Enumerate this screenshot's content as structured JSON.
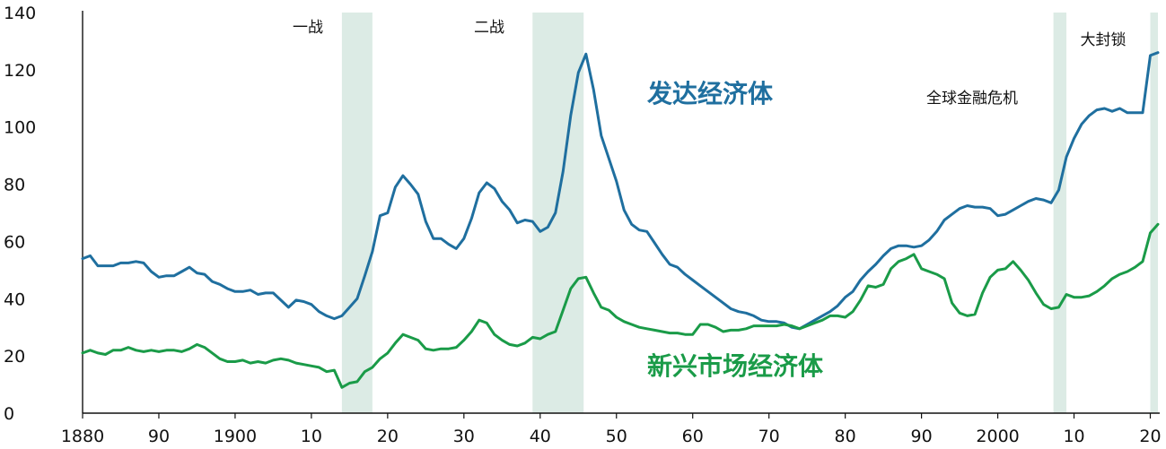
{
  "chart_data": {
    "type": "line",
    "title": "",
    "xlabel": "",
    "ylabel": "",
    "xlim": [
      1880,
      2021
    ],
    "ylim": [
      0,
      140
    ],
    "grid": false,
    "legend": "none",
    "x_ticks": [
      {
        "value": 1880,
        "label": "1880"
      },
      {
        "value": 1890,
        "label": "90"
      },
      {
        "value": 1900,
        "label": "1900"
      },
      {
        "value": 1910,
        "label": "10"
      },
      {
        "value": 1920,
        "label": "20"
      },
      {
        "value": 1930,
        "label": "30"
      },
      {
        "value": 1940,
        "label": "40"
      },
      {
        "value": 1950,
        "label": "50"
      },
      {
        "value": 1960,
        "label": "60"
      },
      {
        "value": 1970,
        "label": "70"
      },
      {
        "value": 1980,
        "label": "80"
      },
      {
        "value": 1990,
        "label": "90"
      },
      {
        "value": 2000,
        "label": "2000"
      },
      {
        "value": 2010,
        "label": "10"
      },
      {
        "value": 2020,
        "label": "20"
      }
    ],
    "y_ticks": [
      {
        "value": 0,
        "label": "0"
      },
      {
        "value": 20,
        "label": "20"
      },
      {
        "value": 40,
        "label": "40"
      },
      {
        "value": 60,
        "label": "60"
      },
      {
        "value": 80,
        "label": "80"
      },
      {
        "value": 100,
        "label": "100"
      },
      {
        "value": 120,
        "label": "120"
      },
      {
        "value": 140,
        "label": "140"
      }
    ],
    "shaded_periods": [
      {
        "label": "一战",
        "start": 1914,
        "end": 1918
      },
      {
        "label": "二战",
        "start": 1939,
        "end": 1945.7
      },
      {
        "label": "全球金融危机",
        "start": 2007.3,
        "end": 2009
      },
      {
        "label": "大封锁",
        "start": 2020,
        "end": 2021
      }
    ],
    "period_color": "#dcebe5",
    "series": [
      {
        "name": "发达经济体",
        "color": "#1f6f9f",
        "points": [
          [
            1880,
            54
          ],
          [
            1881,
            55
          ],
          [
            1882,
            51.5
          ],
          [
            1883,
            51.5
          ],
          [
            1884,
            51.5
          ],
          [
            1885,
            52.5
          ],
          [
            1886,
            52.5
          ],
          [
            1887,
            53
          ],
          [
            1888,
            52.5
          ],
          [
            1889,
            49.5
          ],
          [
            1890,
            47.5
          ],
          [
            1891,
            48
          ],
          [
            1892,
            48
          ],
          [
            1893,
            49.5
          ],
          [
            1894,
            51
          ],
          [
            1895,
            49
          ],
          [
            1896,
            48.5
          ],
          [
            1897,
            46
          ],
          [
            1898,
            45
          ],
          [
            1899,
            43.5
          ],
          [
            1900,
            42.5
          ],
          [
            1901,
            42.5
          ],
          [
            1902,
            43
          ],
          [
            1903,
            41.5
          ],
          [
            1904,
            42
          ],
          [
            1905,
            42
          ],
          [
            1906,
            39.5
          ],
          [
            1907,
            37
          ],
          [
            1908,
            39.5
          ],
          [
            1909,
            39
          ],
          [
            1910,
            38
          ],
          [
            1911,
            35.5
          ],
          [
            1912,
            34
          ],
          [
            1913,
            33
          ],
          [
            1914,
            34
          ],
          [
            1915,
            37
          ],
          [
            1916,
            40
          ],
          [
            1917,
            48
          ],
          [
            1918,
            56.5
          ],
          [
            1919,
            69
          ],
          [
            1920,
            70
          ],
          [
            1921,
            79
          ],
          [
            1922,
            83
          ],
          [
            1923,
            80
          ],
          [
            1924,
            76.5
          ],
          [
            1925,
            67
          ],
          [
            1926,
            61
          ],
          [
            1927,
            61
          ],
          [
            1928,
            59
          ],
          [
            1929,
            57.5
          ],
          [
            1930,
            61
          ],
          [
            1931,
            68
          ],
          [
            1932,
            77
          ],
          [
            1933,
            80.5
          ],
          [
            1934,
            78.5
          ],
          [
            1935,
            74
          ],
          [
            1936,
            71
          ],
          [
            1937,
            66.5
          ],
          [
            1938,
            67.5
          ],
          [
            1939,
            67
          ],
          [
            1940,
            63.5
          ],
          [
            1941,
            65
          ],
          [
            1942,
            70
          ],
          [
            1943,
            84.5
          ],
          [
            1944,
            104
          ],
          [
            1945,
            119
          ],
          [
            1946,
            125.5
          ],
          [
            1947,
            113
          ],
          [
            1948,
            97
          ],
          [
            1949,
            89
          ],
          [
            1950,
            81
          ],
          [
            1951,
            71
          ],
          [
            1952,
            66
          ],
          [
            1953,
            64
          ],
          [
            1954,
            63.5
          ],
          [
            1955,
            59.5
          ],
          [
            1956,
            55.5
          ],
          [
            1957,
            52
          ],
          [
            1958,
            51
          ],
          [
            1959,
            48.5
          ],
          [
            1960,
            46.5
          ],
          [
            1961,
            44.5
          ],
          [
            1962,
            42.5
          ],
          [
            1963,
            40.5
          ],
          [
            1964,
            38.5
          ],
          [
            1965,
            36.5
          ],
          [
            1966,
            35.5
          ],
          [
            1967,
            35
          ],
          [
            1968,
            34
          ],
          [
            1969,
            32.5
          ],
          [
            1970,
            32
          ],
          [
            1971,
            32
          ],
          [
            1972,
            31.5
          ],
          [
            1973,
            30
          ],
          [
            1974,
            29.5
          ],
          [
            1975,
            31
          ],
          [
            1976,
            32.5
          ],
          [
            1977,
            34
          ],
          [
            1978,
            35.5
          ],
          [
            1979,
            37.5
          ],
          [
            1980,
            40.5
          ],
          [
            1981,
            42.5
          ],
          [
            1982,
            46.5
          ],
          [
            1983,
            49.5
          ],
          [
            1984,
            52
          ],
          [
            1985,
            55
          ],
          [
            1986,
            57.5
          ],
          [
            1987,
            58.5
          ],
          [
            1988,
            58.5
          ],
          [
            1989,
            58
          ],
          [
            1990,
            58.5
          ],
          [
            1991,
            60.5
          ],
          [
            1992,
            63.5
          ],
          [
            1993,
            67.5
          ],
          [
            1994,
            69.5
          ],
          [
            1995,
            71.5
          ],
          [
            1996,
            72.5
          ],
          [
            1997,
            72
          ],
          [
            1998,
            72
          ],
          [
            1999,
            71.5
          ],
          [
            2000,
            69
          ],
          [
            2001,
            69.5
          ],
          [
            2002,
            71
          ],
          [
            2003,
            72.5
          ],
          [
            2004,
            74
          ],
          [
            2005,
            75
          ],
          [
            2006,
            74.5
          ],
          [
            2007,
            73.5
          ],
          [
            2008,
            78
          ],
          [
            2009,
            89.5
          ],
          [
            2010,
            96
          ],
          [
            2011,
            101
          ],
          [
            2012,
            104
          ],
          [
            2013,
            106
          ],
          [
            2014,
            106.5
          ],
          [
            2015,
            105.5
          ],
          [
            2016,
            106.5
          ],
          [
            2017,
            105
          ],
          [
            2018,
            105
          ],
          [
            2019,
            105
          ],
          [
            2020,
            125
          ],
          [
            2021,
            126
          ]
        ]
      },
      {
        "name": "新兴市场经济体",
        "color": "#1a9b48",
        "points": [
          [
            1880,
            21
          ],
          [
            1881,
            22
          ],
          [
            1882,
            21
          ],
          [
            1883,
            20.5
          ],
          [
            1884,
            22
          ],
          [
            1885,
            22
          ],
          [
            1886,
            23
          ],
          [
            1887,
            22
          ],
          [
            1888,
            21.5
          ],
          [
            1889,
            22
          ],
          [
            1890,
            21.5
          ],
          [
            1891,
            22
          ],
          [
            1892,
            22
          ],
          [
            1893,
            21.5
          ],
          [
            1894,
            22.5
          ],
          [
            1895,
            24
          ],
          [
            1896,
            23
          ],
          [
            1897,
            21
          ],
          [
            1898,
            19
          ],
          [
            1899,
            18
          ],
          [
            1900,
            18
          ],
          [
            1901,
            18.5
          ],
          [
            1902,
            17.5
          ],
          [
            1903,
            18
          ],
          [
            1904,
            17.5
          ],
          [
            1905,
            18.5
          ],
          [
            1906,
            19
          ],
          [
            1907,
            18.5
          ],
          [
            1908,
            17.5
          ],
          [
            1909,
            17
          ],
          [
            1910,
            16.5
          ],
          [
            1911,
            16
          ],
          [
            1912,
            14.5
          ],
          [
            1913,
            15
          ],
          [
            1914,
            9
          ],
          [
            1915,
            10.5
          ],
          [
            1916,
            11
          ],
          [
            1917,
            14.5
          ],
          [
            1918,
            16
          ],
          [
            1919,
            19
          ],
          [
            1920,
            21
          ],
          [
            1921,
            24.5
          ],
          [
            1922,
            27.5
          ],
          [
            1923,
            26.5
          ],
          [
            1924,
            25.5
          ],
          [
            1925,
            22.5
          ],
          [
            1926,
            22
          ],
          [
            1927,
            22.5
          ],
          [
            1928,
            22.5
          ],
          [
            1929,
            23
          ],
          [
            1930,
            25.5
          ],
          [
            1931,
            28.5
          ],
          [
            1932,
            32.5
          ],
          [
            1933,
            31.5
          ],
          [
            1934,
            27.5
          ],
          [
            1935,
            25.5
          ],
          [
            1936,
            24
          ],
          [
            1937,
            23.5
          ],
          [
            1938,
            24.5
          ],
          [
            1939,
            26.5
          ],
          [
            1940,
            26
          ],
          [
            1941,
            27.5
          ],
          [
            1942,
            28.5
          ],
          [
            1943,
            36
          ],
          [
            1944,
            43.5
          ],
          [
            1945,
            47
          ],
          [
            1946,
            47.5
          ],
          [
            1947,
            42
          ],
          [
            1948,
            37
          ],
          [
            1949,
            36
          ],
          [
            1950,
            33.5
          ],
          [
            1951,
            32
          ],
          [
            1952,
            31
          ],
          [
            1953,
            30
          ],
          [
            1954,
            29.5
          ],
          [
            1955,
            29
          ],
          [
            1956,
            28.5
          ],
          [
            1957,
            28
          ],
          [
            1958,
            28
          ],
          [
            1959,
            27.5
          ],
          [
            1960,
            27.5
          ],
          [
            1961,
            31
          ],
          [
            1962,
            31
          ],
          [
            1963,
            30
          ],
          [
            1964,
            28.5
          ],
          [
            1965,
            29
          ],
          [
            1966,
            29
          ],
          [
            1967,
            29.5
          ],
          [
            1968,
            30.5
          ],
          [
            1969,
            30.5
          ],
          [
            1970,
            30.5
          ],
          [
            1971,
            30.5
          ],
          [
            1972,
            31
          ],
          [
            1973,
            30.5
          ],
          [
            1974,
            29.5
          ],
          [
            1975,
            30.5
          ],
          [
            1976,
            31.5
          ],
          [
            1977,
            32.5
          ],
          [
            1978,
            34
          ],
          [
            1979,
            34
          ],
          [
            1980,
            33.5
          ],
          [
            1981,
            35.5
          ],
          [
            1982,
            39.5
          ],
          [
            1983,
            44.5
          ],
          [
            1984,
            44
          ],
          [
            1985,
            45
          ],
          [
            1986,
            50.5
          ],
          [
            1987,
            53
          ],
          [
            1988,
            54
          ],
          [
            1989,
            55.5
          ],
          [
            1990,
            50.5
          ],
          [
            1991,
            49.5
          ],
          [
            1992,
            48.5
          ],
          [
            1993,
            47
          ],
          [
            1994,
            38.5
          ],
          [
            1995,
            35
          ],
          [
            1996,
            34
          ],
          [
            1997,
            34.5
          ],
          [
            1998,
            42
          ],
          [
            1999,
            47.5
          ],
          [
            2000,
            50
          ],
          [
            2001,
            50.5
          ],
          [
            2002,
            53
          ],
          [
            2003,
            50
          ],
          [
            2004,
            46.5
          ],
          [
            2005,
            42
          ],
          [
            2006,
            38
          ],
          [
            2007,
            36.5
          ],
          [
            2008,
            37
          ],
          [
            2009,
            41.5
          ],
          [
            2010,
            40.5
          ],
          [
            2011,
            40.5
          ],
          [
            2012,
            41
          ],
          [
            2013,
            42.5
          ],
          [
            2014,
            44.5
          ],
          [
            2015,
            47
          ],
          [
            2016,
            48.5
          ],
          [
            2017,
            49.5
          ],
          [
            2018,
            51
          ],
          [
            2019,
            53
          ],
          [
            2020,
            63
          ],
          [
            2021,
            66
          ]
        ]
      }
    ]
  }
}
